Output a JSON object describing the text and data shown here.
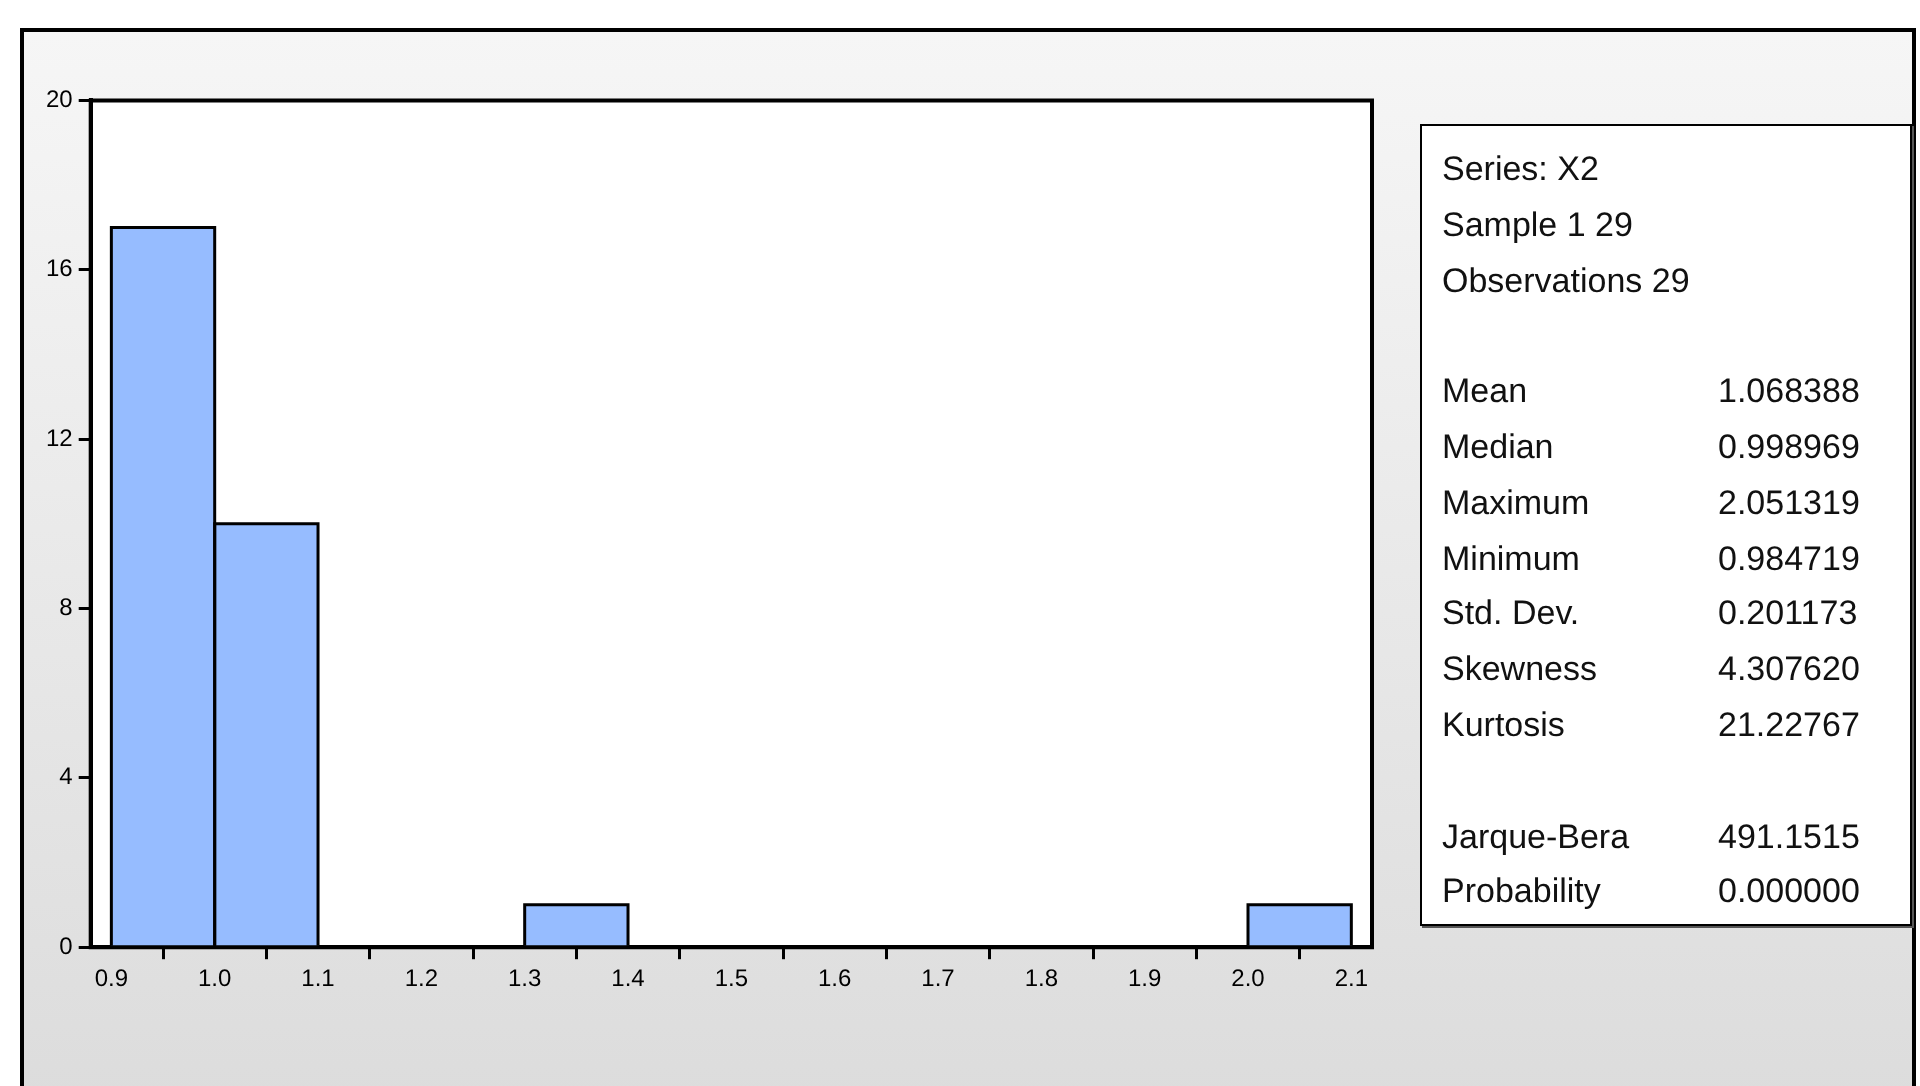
{
  "chart_data": {
    "type": "histogram",
    "color": "#96bcff",
    "bins": [
      0.9,
      1.0,
      1.1,
      1.2,
      1.3,
      1.4,
      1.5,
      1.6,
      1.7,
      1.8,
      1.9,
      2.0,
      2.1
    ],
    "values": [
      17,
      10,
      0,
      0,
      1,
      0,
      0,
      0,
      0,
      0,
      0,
      1
    ],
    "xlim": [
      0.88,
      2.12
    ],
    "xticks": [
      0.9,
      {
        "value": 1.0,
        "label": "1.0"
      },
      1.1,
      1.2,
      1.3,
      1.4,
      1.5,
      1.6,
      1.7,
      1.8,
      1.9,
      {
        "value": 2.0,
        "label": "2.0"
      },
      2.1
    ],
    "ylim": [
      0,
      20
    ],
    "yticks": [
      0,
      4,
      8,
      12,
      16,
      20
    ],
    "grid": false,
    "annotations": [
      "Series: X2",
      "Sample 1 29",
      "Observations 29",
      "Mean 1.068388",
      "Median 0.998969",
      "Maximum 2.051319",
      "Minimum 0.984719",
      "Std. Dev. 0.201173",
      "Skewness 4.307620",
      "Kurtosis 21.22767",
      "Jarque-Bera 491.1515",
      "Probability 0.000000"
    ]
  }
}
